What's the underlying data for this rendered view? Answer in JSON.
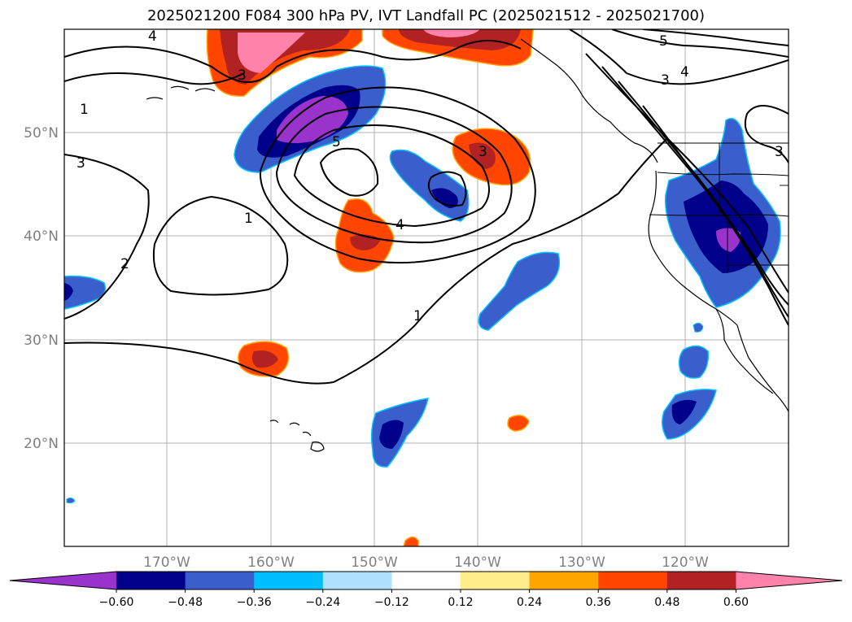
{
  "title": "2025021200 F084 300 hPa PV, IVT Landfall PC (2025021512 - 2025021700)",
  "lon_ticks": [
    "170°W",
    "160°W",
    "150°W",
    "140°W",
    "130°W",
    "120°W"
  ],
  "lat_ticks": [
    "50°N",
    "40°N",
    "30°N",
    "20°N"
  ],
  "colorbar": {
    "tick_labels": [
      "−0.60",
      "−0.48",
      "−0.36",
      "−0.24",
      "−0.12",
      "0.12",
      "0.24",
      "0.36",
      "0.48",
      "0.60"
    ],
    "colors": [
      "#9933cc",
      "#00008b",
      "#3a5fcd",
      "#00bfff",
      "#b0e2ff",
      "#ffffff",
      "#ffec8b",
      "#ffa500",
      "#ff4500",
      "#b22222",
      "#ff82ab"
    ]
  },
  "contour_labels": [
    "4",
    "1",
    "3",
    "1",
    "2",
    "5",
    "3",
    "4",
    "3",
    "1",
    "5",
    "4",
    "3",
    "3"
  ]
}
